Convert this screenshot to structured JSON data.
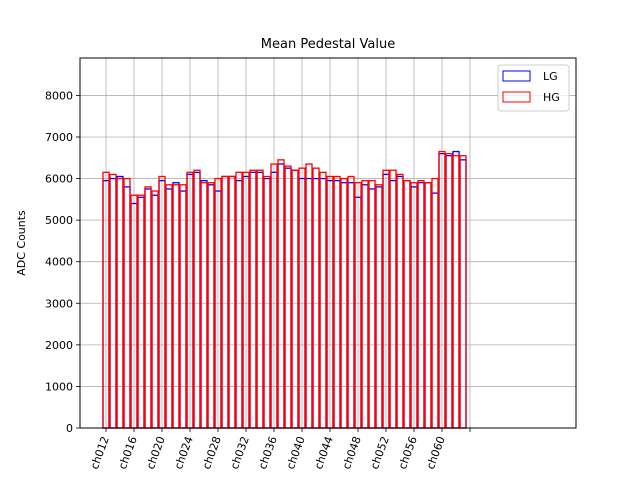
{
  "chart_data": {
    "type": "bar",
    "title": "Mean Pedestal Value",
    "xlabel": "",
    "ylabel": "ADC Counts",
    "ylim": [
      0,
      8900
    ],
    "yticks": [
      0,
      1000,
      2000,
      3000,
      4000,
      5000,
      6000,
      7000,
      8000
    ],
    "grid": true,
    "legend_position": "top-right",
    "categories": [
      "ch012",
      "ch013",
      "ch014",
      "ch015",
      "ch016",
      "ch017",
      "ch018",
      "ch019",
      "ch020",
      "ch021",
      "ch022",
      "ch023",
      "ch024",
      "ch025",
      "ch026",
      "ch027",
      "ch028",
      "ch029",
      "ch030",
      "ch031",
      "ch032",
      "ch033",
      "ch034",
      "ch035",
      "ch036",
      "ch037",
      "ch038",
      "ch039",
      "ch040",
      "ch041",
      "ch042",
      "ch043",
      "ch044",
      "ch045",
      "ch046",
      "ch047",
      "ch048",
      "ch049",
      "ch050",
      "ch051",
      "ch052",
      "ch053",
      "ch054",
      "ch055",
      "ch056",
      "ch057",
      "ch058",
      "ch059",
      "ch060",
      "ch061",
      "ch062",
      "ch063"
    ],
    "xtick_labels": [
      "ch012",
      "ch016",
      "ch020",
      "ch024",
      "ch028",
      "ch032",
      "ch036",
      "ch040",
      "ch044",
      "ch048",
      "ch052",
      "ch056",
      "ch060"
    ],
    "series": [
      {
        "name": "LG",
        "color": "#0000ff",
        "values": [
          5950,
          6000,
          6050,
          5800,
          5400,
          5550,
          5750,
          5600,
          5950,
          5750,
          5900,
          5700,
          6100,
          6150,
          5950,
          5850,
          5700,
          6050,
          6050,
          5950,
          6050,
          6150,
          6150,
          6000,
          6150,
          6350,
          6250,
          6200,
          6000,
          6000,
          6000,
          6000,
          5950,
          5950,
          5900,
          5900,
          5550,
          5850,
          5750,
          5800,
          6100,
          5950,
          6050,
          5950,
          5800,
          5900,
          5900,
          5650,
          6600,
          6550,
          6650,
          6450
        ]
      },
      {
        "name": "HG",
        "color": "#ff0000",
        "values": [
          6150,
          6100,
          6000,
          6000,
          5600,
          5600,
          5800,
          5700,
          6050,
          5850,
          5850,
          5850,
          6150,
          6200,
          5900,
          5900,
          6000,
          6050,
          6050,
          6150,
          6150,
          6200,
          6200,
          6050,
          6350,
          6450,
          6300,
          6200,
          6250,
          6350,
          6250,
          6150,
          6050,
          6050,
          6000,
          6050,
          5900,
          5950,
          5950,
          5850,
          6200,
          6200,
          6100,
          5950,
          5900,
          5950,
          5900,
          6000,
          6650,
          6600,
          6550,
          6550
        ]
      }
    ]
  }
}
